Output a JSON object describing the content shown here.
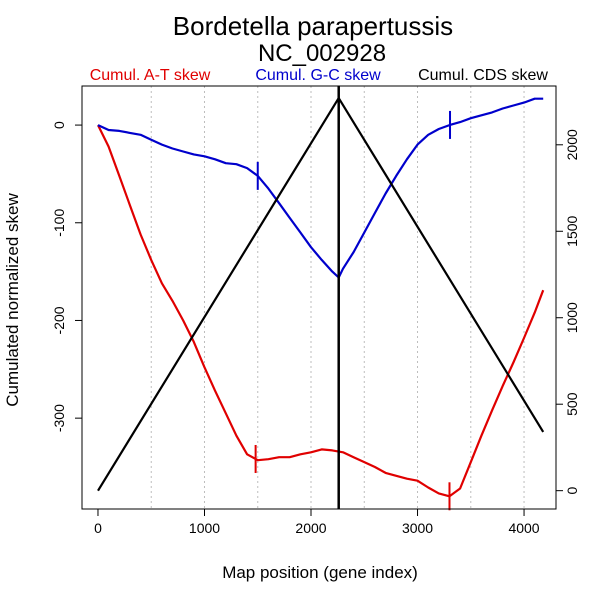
{
  "chart_data": {
    "type": "line",
    "title": "Bordetella parapertussis",
    "subtitle": "NC_002928",
    "xlabel": "Map position (gene index)",
    "ylabel": "Cumulated normalized skew",
    "xlim": [
      -150,
      4300
    ],
    "ylim_left": [
      -393,
      40
    ],
    "ylim_right": [
      -106,
      2340
    ],
    "x_ticks": [
      0,
      1000,
      2000,
      3000,
      4000
    ],
    "y_ticks_left": [
      0,
      -100,
      -200,
      -300
    ],
    "y_ticks_right": [
      0,
      500,
      1000,
      1500,
      2000
    ],
    "vertical_gridlines": [
      500,
      1000,
      1500,
      2000,
      2500,
      3000,
      3500,
      4000
    ],
    "grid": "vertical dotted",
    "legend_placement": "top",
    "series": [
      {
        "name": "Cumul. A-T skew",
        "color": "#e00000",
        "axis": "left",
        "x": [
          0,
          100,
          200,
          300,
          400,
          500,
          600,
          700,
          800,
          900,
          1000,
          1100,
          1200,
          1300,
          1400,
          1500,
          1600,
          1700,
          1800,
          1900,
          2000,
          2100,
          2200,
          2300,
          2400,
          2500,
          2600,
          2700,
          2800,
          2900,
          3000,
          3100,
          3200,
          3300,
          3400,
          3500,
          3600,
          3700,
          3800,
          3900,
          4000,
          4100,
          4180
        ],
        "y": [
          0,
          -22,
          -52,
          -82,
          -112,
          -138,
          -162,
          -180,
          -200,
          -222,
          -248,
          -272,
          -295,
          -318,
          -337,
          -343,
          -342,
          -340,
          -340,
          -337,
          -335,
          -332,
          -333,
          -335,
          -340,
          -345,
          -350,
          -356,
          -359,
          -362,
          -364,
          -371,
          -377,
          -380,
          -372,
          -345,
          -318,
          -292,
          -267,
          -243,
          -218,
          -192,
          -169
        ]
      },
      {
        "name": "Cumul. G-C skew",
        "color": "#0000cc",
        "axis": "left",
        "x": [
          0,
          100,
          200,
          300,
          400,
          500,
          600,
          700,
          800,
          900,
          1000,
          1100,
          1200,
          1300,
          1400,
          1500,
          1600,
          1700,
          1800,
          1900,
          2000,
          2100,
          2200,
          2260,
          2300,
          2400,
          2500,
          2600,
          2700,
          2800,
          2900,
          3000,
          3100,
          3200,
          3300,
          3400,
          3500,
          3600,
          3700,
          3800,
          3900,
          4000,
          4100,
          4180
        ],
        "y": [
          0,
          -5,
          -6,
          -8,
          -10,
          -15,
          -20,
          -24,
          -27,
          -30,
          -32,
          -35,
          -39,
          -40,
          -44,
          -52,
          -65,
          -80,
          -95,
          -110,
          -125,
          -138,
          -150,
          -156,
          -147,
          -130,
          -110,
          -90,
          -70,
          -52,
          -35,
          -20,
          -10,
          -4,
          0,
          3,
          7,
          10,
          13,
          17,
          20,
          23,
          27,
          27
        ]
      },
      {
        "name": "Cumul. CDS skew",
        "color": "#000000",
        "axis": "right",
        "x": [
          0,
          2260,
          4180
        ],
        "y": [
          0,
          2270,
          340
        ]
      }
    ],
    "markers": [
      {
        "series": "Cumul. A-T skew",
        "x": 1480
      },
      {
        "series": "Cumul. A-T skew",
        "x": 3300
      },
      {
        "series": "Cumul. G-C skew",
        "x": 1500
      },
      {
        "series": "Cumul. G-C skew",
        "x": 3305
      },
      {
        "series": "Cumul. CDS skew",
        "x": 2260,
        "full_height": true
      }
    ]
  }
}
